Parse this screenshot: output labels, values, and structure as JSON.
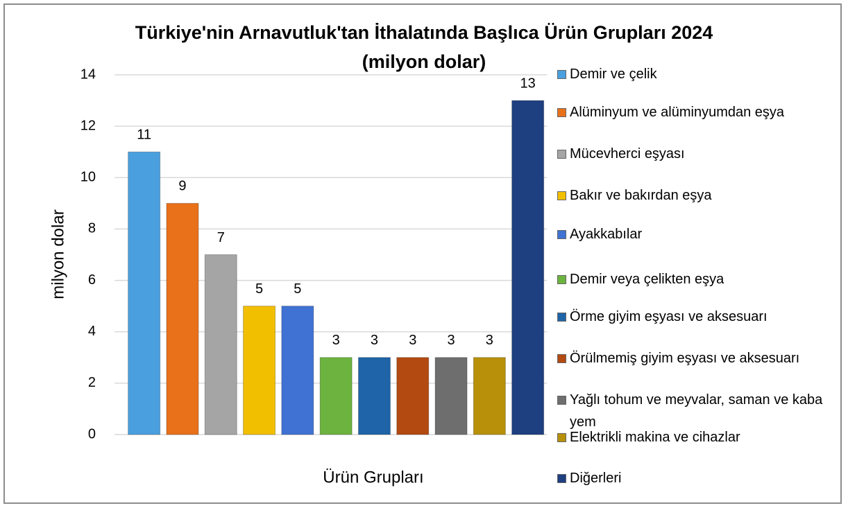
{
  "chart_data": {
    "type": "bar",
    "title": "Türkiye'nin Arnavutluk'tan İthalatında Başlıca Ürün Grupları 2024",
    "subtitle": "(milyon dolar)",
    "x_label": "Ürün Grupları",
    "y_label": "milyon dolar",
    "categories": [
      "Demir ve çelik",
      "Alüminyum ve alüminyumdan eşya",
      "Mücevherci eşyası",
      "Bakır ve bakırdan eşya",
      "Ayakkabılar",
      "Demir veya çelikten eşya",
      "Örme giyim eşyası ve aksesuarı",
      "Örülmemiş giyim eşyası ve aksesuarı",
      "Yağlı tohum ve meyvalar, saman ve kaba yem",
      "Elektrikli makina ve cihazlar",
      "Diğerleri"
    ],
    "values": [
      11,
      9,
      7,
      5,
      5,
      3,
      3,
      3,
      3,
      3,
      13
    ],
    "colors": [
      "#4a9fdf",
      "#e8711a",
      "#a5a5a5",
      "#f2bf00",
      "#3f72d3",
      "#6cb33f",
      "#1f64a8",
      "#b34a12",
      "#6e6e6e",
      "#b8900a",
      "#1e3f80"
    ],
    "ylim": [
      0,
      14
    ],
    "yticks": [
      0,
      2,
      4,
      6,
      8,
      10,
      12,
      14
    ],
    "grid": true,
    "legend": "right"
  }
}
